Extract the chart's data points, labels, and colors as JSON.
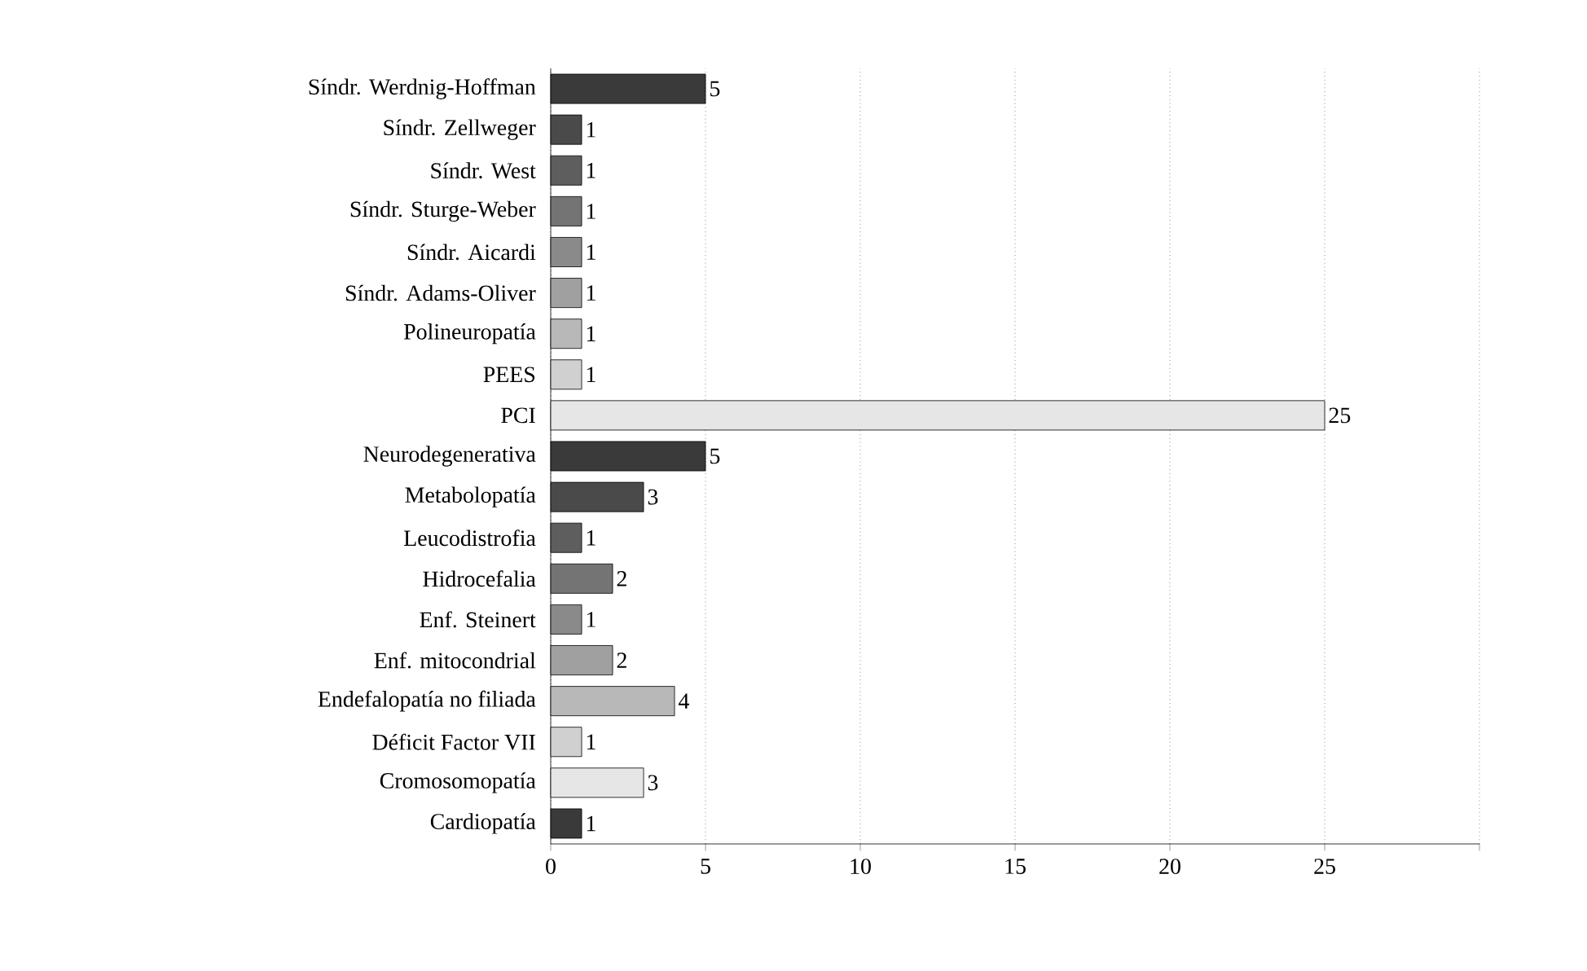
{
  "chart_data": {
    "type": "bar",
    "orientation": "horizontal",
    "categories": [
      "Síndr. Werdnig-Hoffman",
      "Síndr. Zellweger",
      "Síndr. West",
      "Síndr. Sturge-Weber",
      "Síndr. Aicardi",
      "Síndr. Adams-Oliver",
      "Polineuropatía",
      "PEES",
      "PCI",
      "Neurodegenerativa",
      "Metabolopatía",
      "Leucodistrofia",
      "Hidrocefalia",
      "Enf. Steinert",
      "Enf. mitocondrial",
      "Endefalopatía no filiada",
      "Déficit Factor VII",
      "Cromosomopatía",
      "Cardiopatía"
    ],
    "values": [
      5,
      1,
      1,
      1,
      1,
      1,
      1,
      1,
      25,
      5,
      3,
      1,
      2,
      1,
      2,
      4,
      1,
      3,
      1
    ],
    "colors": [
      "#3a3a3a",
      "#4a4a4a",
      "#5e5e5e",
      "#747474",
      "#8a8a8a",
      "#a0a0a0",
      "#b8b8b8",
      "#d0d0d0",
      "#e6e6e6",
      "#3a3a3a",
      "#4a4a4a",
      "#5e5e5e",
      "#747474",
      "#8a8a8a",
      "#a0a0a0",
      "#b8b8b8",
      "#d0d0d0",
      "#e6e6e6",
      "#3a3a3a"
    ],
    "xlim": [
      0,
      30
    ],
    "xticks": [
      0,
      5,
      10,
      15,
      20,
      25,
      {
        "value": 30,
        "label": null
      }
    ],
    "grid": "x",
    "data_labels": true
  }
}
